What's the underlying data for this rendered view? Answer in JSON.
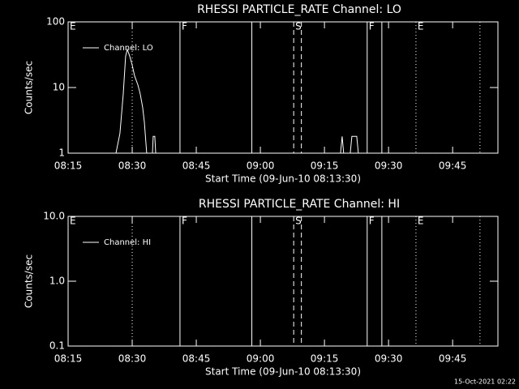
{
  "chart_data": [
    {
      "type": "line",
      "title": "RHESSI PARTICLE_RATE Channel: LO",
      "xlabel": "Start Time (09-Jun-10 08:13:30)",
      "ylabel": "Counts/sec",
      "log_y": true,
      "ylim": [
        1,
        100
      ],
      "yticks": [
        1,
        10,
        100
      ],
      "xlim": [
        "08:15",
        "09:55:36"
      ],
      "xticks": [
        "08:15",
        "08:30",
        "08:45",
        "09:00",
        "09:15",
        "09:30",
        "09:45"
      ],
      "legend": "upper left",
      "series": [
        {
          "name": "Channel: LO",
          "color": "#ffffff",
          "x": [
            "08:26:12",
            "08:27:08",
            "08:27:54",
            "08:28:28",
            "08:28:51",
            "08:29:25",
            "08:30:00",
            "08:30:34",
            "08:31:19",
            "08:31:53",
            "08:32:27",
            "08:32:50",
            "08:33:24",
            "08:34:44",
            "08:34:55",
            "08:35:18",
            "08:35:30",
            "09:18:46",
            "09:19:08",
            "09:19:30",
            "09:21:02",
            "09:21:25",
            "09:22:33",
            "09:22:56"
          ],
          "values": [
            1,
            2,
            8,
            30,
            38,
            30,
            22,
            15,
            11,
            8,
            5,
            3,
            1,
            1,
            1.8,
            1.8,
            1,
            1,
            1.8,
            1,
            1,
            1.8,
            1.8,
            1
          ]
        }
      ],
      "events": [
        {
          "x": "08:15",
          "style": "dotted",
          "label": "E"
        },
        {
          "x": "08:30",
          "style": "dotted"
        },
        {
          "x": "08:41:11",
          "style": "solid",
          "label": "F"
        },
        {
          "x": "08:58",
          "style": "solid"
        },
        {
          "x": "09:07:48",
          "style": "dashed",
          "label": "S"
        },
        {
          "x": "09:09:36",
          "style": "dashed"
        },
        {
          "x": "09:25",
          "style": "solid",
          "label": "F"
        },
        {
          "x": "09:28:26",
          "style": "solid"
        },
        {
          "x": "09:36:25",
          "style": "dotted",
          "label": "E"
        },
        {
          "x": "09:51:24",
          "style": "dotted"
        }
      ]
    },
    {
      "type": "line",
      "title": "RHESSI PARTICLE_RATE Channel: HI",
      "xlabel": "Start Time (09-Jun-10 08:13:30)",
      "ylabel": "Counts/sec",
      "log_y": true,
      "ylim": [
        0.1,
        10
      ],
      "yticks": [
        0.1,
        {
          "value": 1,
          "label": "1.0"
        },
        {
          "value": 10,
          "label": "10.0"
        }
      ],
      "xlim": [
        "08:15",
        "09:55:36"
      ],
      "xticks": [
        "08:15",
        "08:30",
        "08:45",
        "09:00",
        "09:15",
        "09:30",
        "09:45"
      ],
      "legend": "upper left",
      "series": [
        {
          "name": "Channel: HI",
          "color": "#ffffff",
          "x": [],
          "values": []
        }
      ],
      "events": [
        {
          "x": "08:15",
          "style": "dotted",
          "label": "E"
        },
        {
          "x": "08:30",
          "style": "dotted"
        },
        {
          "x": "08:41:11",
          "style": "solid",
          "label": "F"
        },
        {
          "x": "08:58",
          "style": "solid"
        },
        {
          "x": "09:07:48",
          "style": "dashed",
          "label": "S"
        },
        {
          "x": "09:09:36",
          "style": "dashed"
        },
        {
          "x": "09:25",
          "style": "solid",
          "label": "F"
        },
        {
          "x": "09:28:26",
          "style": "solid"
        },
        {
          "x": "09:36:25",
          "style": "dotted",
          "label": "E"
        },
        {
          "x": "09:51:24",
          "style": "dotted"
        }
      ]
    }
  ],
  "footer": "15-Oct-2021 02:22"
}
